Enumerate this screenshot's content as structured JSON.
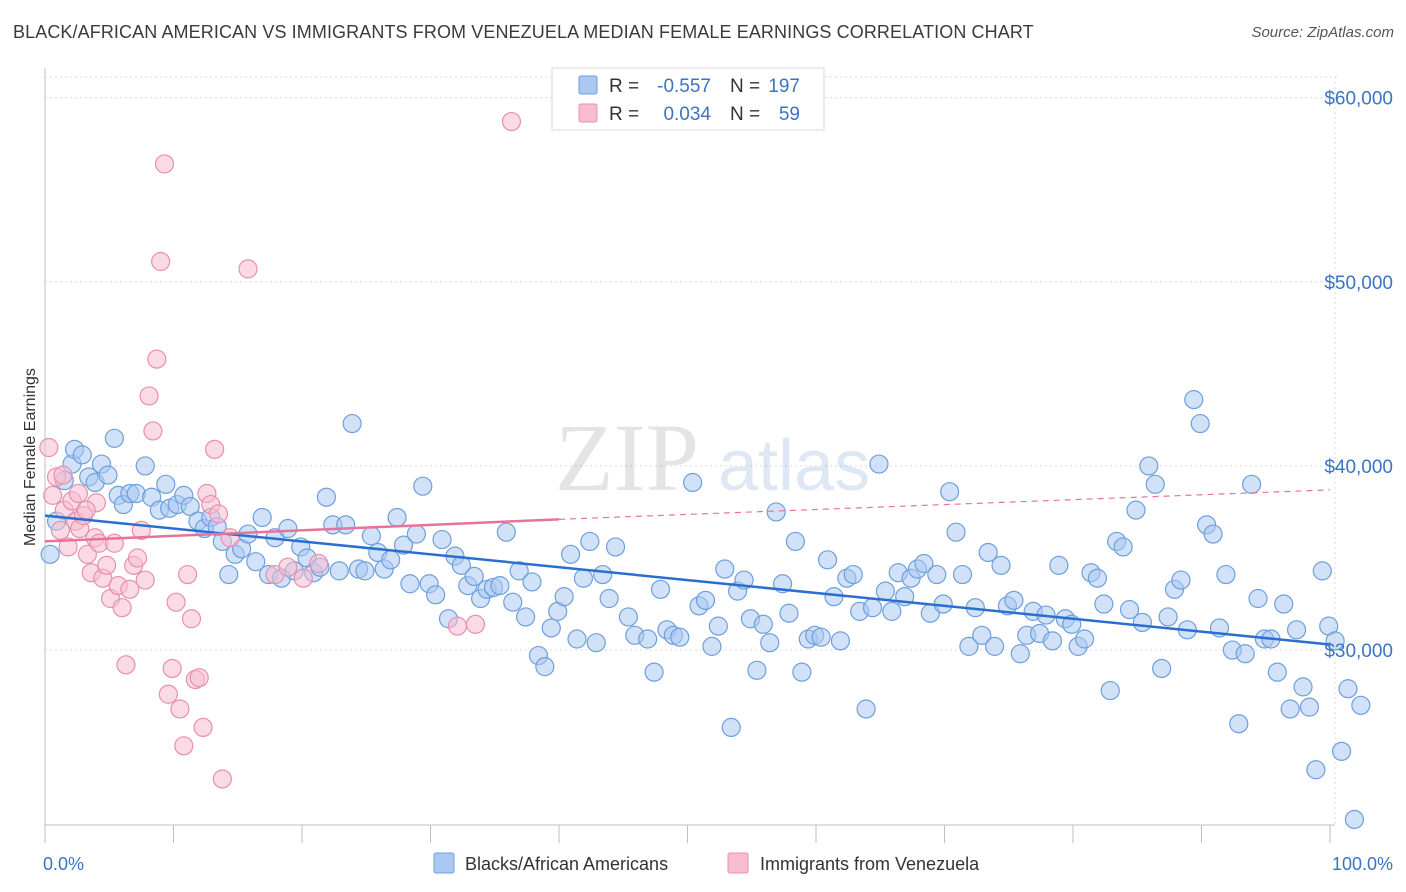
{
  "title": "BLACK/AFRICAN AMERICAN VS IMMIGRANTS FROM VENEZUELA MEDIAN FEMALE EARNINGS CORRELATION CHART",
  "source": "Source: ZipAtlas.com",
  "watermark": {
    "zip": "ZIP",
    "atlas": "atlas"
  },
  "colors": {
    "blue_fill": "#a9c8f2",
    "blue_stroke": "#6f9fdc",
    "blue_line": "#2a6fd0",
    "pink_fill": "#f6bdd0",
    "pink_stroke": "#e98fae",
    "pink_line": "#e8739a",
    "accent_text": "#3b73c4"
  },
  "legend": {
    "r_label": "R =",
    "n_label": "N =",
    "rows": [
      {
        "r": "-0.557",
        "n": "197"
      },
      {
        "r": "0.034",
        "n": "59"
      }
    ]
  },
  "chart_data": {
    "type": "scatter",
    "xlabel": "",
    "ylabel": "Median Female Earnings",
    "x_tick_labels": [
      "0.0%",
      "100.0%"
    ],
    "y_tick_labels": [
      "$30,000",
      "$40,000",
      "$50,000",
      "$60,000"
    ],
    "xlim": [
      0,
      100
    ],
    "ylim": [
      20500,
      61500
    ],
    "y_ticks": [
      30000,
      40000,
      50000,
      60000
    ],
    "grid": true,
    "legend_position": "top-center",
    "series": [
      {
        "name": "Blacks/African Americans",
        "color": "#a9c8f2",
        "trend": {
          "x0": 0,
          "y0": 37300,
          "x1": 100,
          "y1": 30300
        },
        "points": [
          [
            0.4,
            35200
          ],
          [
            0.9,
            37000
          ],
          [
            1.5,
            39200
          ],
          [
            2.1,
            40100
          ],
          [
            2.3,
            40900
          ],
          [
            2.9,
            40600
          ],
          [
            3.4,
            39400
          ],
          [
            3.9,
            39100
          ],
          [
            4.4,
            40100
          ],
          [
            4.9,
            39500
          ],
          [
            5.4,
            41500
          ],
          [
            5.7,
            38400
          ],
          [
            6.1,
            37900
          ],
          [
            6.6,
            38500
          ],
          [
            7.1,
            38500
          ],
          [
            7.8,
            40000
          ],
          [
            8.3,
            38300
          ],
          [
            8.9,
            37600
          ],
          [
            9.4,
            39000
          ],
          [
            9.7,
            37700
          ],
          [
            10.3,
            37900
          ],
          [
            10.8,
            38400
          ],
          [
            11.3,
            37800
          ],
          [
            11.9,
            37000
          ],
          [
            12.4,
            36600
          ],
          [
            12.9,
            37200
          ],
          [
            13.4,
            36700
          ],
          [
            13.8,
            35900
          ],
          [
            14.3,
            34100
          ],
          [
            14.8,
            35200
          ],
          [
            15.3,
            35500
          ],
          [
            15.8,
            36300
          ],
          [
            16.4,
            34800
          ],
          [
            16.9,
            37200
          ],
          [
            17.4,
            34100
          ],
          [
            17.9,
            36100
          ],
          [
            18.4,
            33900
          ],
          [
            18.9,
            36600
          ],
          [
            19.4,
            34300
          ],
          [
            19.9,
            35600
          ],
          [
            20.4,
            35000
          ],
          [
            20.9,
            34200
          ],
          [
            21.4,
            34500
          ],
          [
            21.9,
            38300
          ],
          [
            22.4,
            36800
          ],
          [
            22.9,
            34300
          ],
          [
            23.4,
            36800
          ],
          [
            23.9,
            42300
          ],
          [
            24.4,
            34400
          ],
          [
            24.9,
            34300
          ],
          [
            25.4,
            36200
          ],
          [
            25.9,
            35300
          ],
          [
            26.4,
            34400
          ],
          [
            26.9,
            34900
          ],
          [
            27.4,
            37200
          ],
          [
            27.9,
            35700
          ],
          [
            28.4,
            33600
          ],
          [
            28.9,
            36300
          ],
          [
            29.4,
            38900
          ],
          [
            29.9,
            33600
          ],
          [
            30.4,
            33000
          ],
          [
            30.9,
            36000
          ],
          [
            31.4,
            31700
          ],
          [
            31.9,
            35100
          ],
          [
            32.4,
            34600
          ],
          [
            32.9,
            33500
          ],
          [
            33.4,
            34000
          ],
          [
            33.9,
            32800
          ],
          [
            34.4,
            33300
          ],
          [
            34.9,
            33400
          ],
          [
            35.4,
            33500
          ],
          [
            35.9,
            36400
          ],
          [
            36.4,
            32600
          ],
          [
            36.9,
            34300
          ],
          [
            37.4,
            31800
          ],
          [
            37.9,
            33700
          ],
          [
            38.4,
            29700
          ],
          [
            38.9,
            29100
          ],
          [
            39.4,
            31200
          ],
          [
            39.9,
            32100
          ],
          [
            40.4,
            32900
          ],
          [
            40.9,
            35200
          ],
          [
            41.4,
            30600
          ],
          [
            41.9,
            33900
          ],
          [
            42.4,
            35900
          ],
          [
            42.9,
            30400
          ],
          [
            43.4,
            34100
          ],
          [
            43.9,
            32800
          ],
          [
            44.4,
            35600
          ],
          [
            45.4,
            31800
          ],
          [
            45.9,
            30800
          ],
          [
            46.9,
            30600
          ],
          [
            47.4,
            28800
          ],
          [
            47.9,
            33300
          ],
          [
            48.4,
            31100
          ],
          [
            48.9,
            30800
          ],
          [
            49.4,
            30700
          ],
          [
            50.4,
            39100
          ],
          [
            50.9,
            32400
          ],
          [
            51.4,
            32700
          ],
          [
            51.9,
            30200
          ],
          [
            52.4,
            31300
          ],
          [
            52.9,
            34400
          ],
          [
            53.4,
            25800
          ],
          [
            53.9,
            33200
          ],
          [
            54.4,
            33800
          ],
          [
            54.9,
            31700
          ],
          [
            55.4,
            28900
          ],
          [
            55.9,
            31400
          ],
          [
            56.4,
            30400
          ],
          [
            56.9,
            37500
          ],
          [
            57.4,
            33600
          ],
          [
            57.9,
            32000
          ],
          [
            58.4,
            35900
          ],
          [
            58.9,
            28800
          ],
          [
            59.4,
            30600
          ],
          [
            59.9,
            30800
          ],
          [
            60.4,
            30700
          ],
          [
            60.9,
            34900
          ],
          [
            61.4,
            32900
          ],
          [
            61.9,
            30500
          ],
          [
            62.4,
            33900
          ],
          [
            62.9,
            34100
          ],
          [
            63.4,
            32100
          ],
          [
            63.9,
            26800
          ],
          [
            64.4,
            32300
          ],
          [
            64.9,
            40100
          ],
          [
            65.4,
            33200
          ],
          [
            65.9,
            32100
          ],
          [
            66.4,
            34200
          ],
          [
            66.9,
            32900
          ],
          [
            67.4,
            33900
          ],
          [
            67.9,
            34400
          ],
          [
            68.4,
            34700
          ],
          [
            68.9,
            32000
          ],
          [
            69.4,
            34100
          ],
          [
            69.9,
            32500
          ],
          [
            70.4,
            38600
          ],
          [
            70.9,
            36400
          ],
          [
            71.4,
            34100
          ],
          [
            71.9,
            30200
          ],
          [
            72.4,
            32300
          ],
          [
            72.9,
            30800
          ],
          [
            73.4,
            35300
          ],
          [
            73.9,
            30200
          ],
          [
            74.4,
            34600
          ],
          [
            74.9,
            32400
          ],
          [
            75.4,
            32700
          ],
          [
            75.9,
            29800
          ],
          [
            76.4,
            30800
          ],
          [
            76.9,
            32100
          ],
          [
            77.4,
            30900
          ],
          [
            77.9,
            31900
          ],
          [
            78.4,
            30500
          ],
          [
            78.9,
            34600
          ],
          [
            79.4,
            31700
          ],
          [
            79.9,
            31400
          ],
          [
            80.4,
            30200
          ],
          [
            80.9,
            30600
          ],
          [
            81.4,
            34200
          ],
          [
            81.9,
            33900
          ],
          [
            82.4,
            32500
          ],
          [
            82.9,
            27800
          ],
          [
            83.4,
            35900
          ],
          [
            83.9,
            35600
          ],
          [
            84.4,
            32200
          ],
          [
            84.9,
            37600
          ],
          [
            85.4,
            31500
          ],
          [
            85.9,
            40000
          ],
          [
            86.4,
            39000
          ],
          [
            86.9,
            29000
          ],
          [
            87.4,
            31800
          ],
          [
            87.9,
            33300
          ],
          [
            88.4,
            33800
          ],
          [
            88.9,
            31100
          ],
          [
            89.4,
            43600
          ],
          [
            89.9,
            42300
          ],
          [
            90.4,
            36800
          ],
          [
            90.9,
            36300
          ],
          [
            91.4,
            31200
          ],
          [
            91.9,
            34100
          ],
          [
            92.4,
            30000
          ],
          [
            92.9,
            26000
          ],
          [
            93.4,
            29800
          ],
          [
            93.9,
            39000
          ],
          [
            94.4,
            32800
          ],
          [
            94.9,
            30600
          ],
          [
            95.4,
            30600
          ],
          [
            95.9,
            28800
          ],
          [
            96.4,
            32500
          ],
          [
            96.9,
            26800
          ],
          [
            97.4,
            31100
          ],
          [
            97.9,
            28000
          ],
          [
            98.4,
            26900
          ],
          [
            98.9,
            23500
          ],
          [
            99.4,
            34300
          ],
          [
            99.9,
            31300
          ],
          [
            100.4,
            30500
          ],
          [
            100.9,
            24500
          ],
          [
            101.4,
            27900
          ],
          [
            101.9,
            20800
          ],
          [
            102.4,
            27000
          ]
        ]
      },
      {
        "name": "Immigrants from Venezuela",
        "color": "#f6bdd0",
        "trend": {
          "x0": 0,
          "y0": 35900,
          "x1": 40,
          "y1": 37100,
          "dashed_to_x": 100,
          "dashed_to_y": 38700
        },
        "points": [
          [
            0.3,
            41000
          ],
          [
            0.6,
            38400
          ],
          [
            0.9,
            39400
          ],
          [
            1.2,
            36500
          ],
          [
            1.5,
            37600
          ],
          [
            1.8,
            35600
          ],
          [
            2.1,
            38100
          ],
          [
            2.4,
            37000
          ],
          [
            2.7,
            36600
          ],
          [
            3.0,
            37300
          ],
          [
            3.3,
            35200
          ],
          [
            3.6,
            34200
          ],
          [
            3.9,
            36100
          ],
          [
            4.2,
            35800
          ],
          [
            4.5,
            33900
          ],
          [
            4.8,
            34600
          ],
          [
            5.1,
            32800
          ],
          [
            5.4,
            35800
          ],
          [
            5.7,
            33500
          ],
          [
            6.0,
            32300
          ],
          [
            6.3,
            29200
          ],
          [
            6.6,
            33300
          ],
          [
            6.9,
            34600
          ],
          [
            7.2,
            35000
          ],
          [
            7.5,
            36500
          ],
          [
            7.8,
            33800
          ],
          [
            8.1,
            43800
          ],
          [
            8.4,
            41900
          ],
          [
            8.7,
            45800
          ],
          [
            9.0,
            51100
          ],
          [
            9.3,
            56400
          ],
          [
            9.6,
            27600
          ],
          [
            9.9,
            29000
          ],
          [
            10.2,
            32600
          ],
          [
            10.5,
            26800
          ],
          [
            10.8,
            24800
          ],
          [
            11.1,
            34100
          ],
          [
            11.4,
            31700
          ],
          [
            11.7,
            28400
          ],
          [
            12.0,
            28500
          ],
          [
            12.3,
            25800
          ],
          [
            12.6,
            38500
          ],
          [
            12.9,
            37900
          ],
          [
            13.2,
            40900
          ],
          [
            13.5,
            37400
          ],
          [
            13.8,
            23000
          ],
          [
            14.4,
            36100
          ],
          [
            15.8,
            50700
          ],
          [
            17.9,
            34100
          ],
          [
            18.9,
            34500
          ],
          [
            20.1,
            33900
          ],
          [
            21.3,
            34700
          ],
          [
            32.1,
            31300
          ],
          [
            33.5,
            31400
          ],
          [
            36.3,
            58700
          ],
          [
            4.0,
            38000
          ],
          [
            2.6,
            38500
          ],
          [
            3.2,
            37600
          ],
          [
            1.4,
            39500
          ]
        ]
      }
    ]
  },
  "bottom_legend": [
    "Blacks/African Americans",
    "Immigrants from Venezuela"
  ]
}
